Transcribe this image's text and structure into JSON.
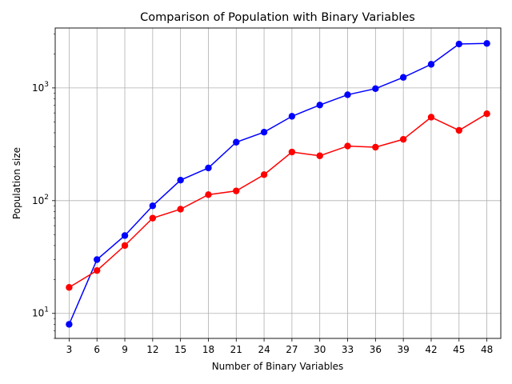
{
  "chart_data": {
    "type": "line",
    "title": "Comparison of Population with Binary Variables",
    "xlabel": "Number of Binary Variables",
    "ylabel": "Population size",
    "yscale": "log",
    "ylim": [
      6,
      3400
    ],
    "xlim": [
      1.5,
      49.5
    ],
    "grid": true,
    "x": [
      3,
      6,
      9,
      12,
      15,
      18,
      21,
      24,
      27,
      30,
      33,
      36,
      39,
      42,
      45,
      48
    ],
    "x_tick_labels": [
      "3",
      "6",
      "9",
      "12",
      "15",
      "18",
      "21",
      "24",
      "27",
      "30",
      "33",
      "36",
      "39",
      "42",
      "45",
      "48"
    ],
    "y_tick_labels": [
      {
        "value": 10,
        "base": "10",
        "exp": "1"
      },
      {
        "value": 100,
        "base": "10",
        "exp": "2"
      },
      {
        "value": 1000,
        "base": "10",
        "exp": "3"
      }
    ],
    "series": [
      {
        "color": "#0000ff",
        "values": [
          8,
          30,
          49,
          90,
          152,
          195,
          330,
          405,
          560,
          705,
          870,
          985,
          1240,
          1620,
          2450,
          2480
        ]
      },
      {
        "color": "#ff0000",
        "values": [
          17,
          24,
          40,
          70,
          84,
          113,
          122,
          170,
          270,
          250,
          305,
          298,
          350,
          550,
          420,
          590
        ]
      }
    ]
  }
}
